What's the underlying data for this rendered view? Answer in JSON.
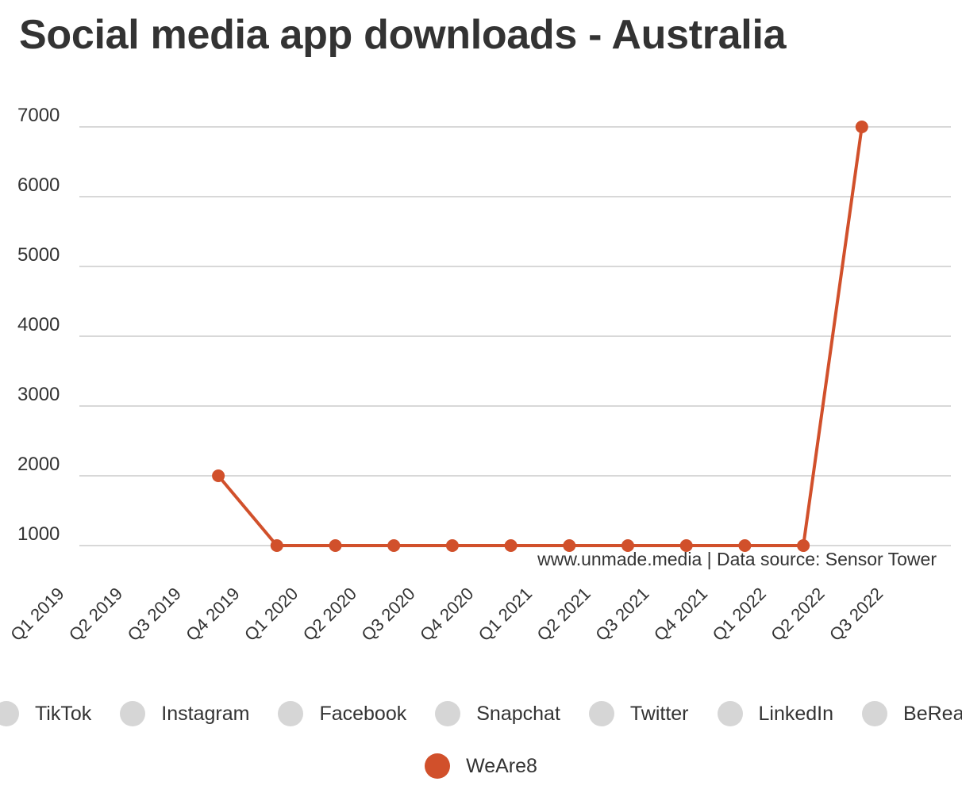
{
  "chart_data": {
    "type": "line",
    "title": "Social media app downloads - Australia",
    "source_note": "www.unmade.media | Data source: Sensor Tower",
    "categories": [
      "Q1 2019",
      "Q2 2019",
      "Q3 2019",
      "Q4 2019",
      "Q1 2020",
      "Q2 2020",
      "Q3 2020",
      "Q4 2020",
      "Q1 2021",
      "Q2 2021",
      "Q3 2021",
      "Q4 2021",
      "Q1 2022",
      "Q2 2022",
      "Q3 2022"
    ],
    "yticks": [
      "1000",
      "2000",
      "3000",
      "4000",
      "5000",
      "6000",
      "7000"
    ],
    "ylim": [
      800,
      7200
    ],
    "grid": true,
    "legend_position": "bottom",
    "legend": [
      {
        "name": "TikTok",
        "active": false
      },
      {
        "name": "Instagram",
        "active": false
      },
      {
        "name": "Facebook",
        "active": false
      },
      {
        "name": "Snapchat",
        "active": false
      },
      {
        "name": "Twitter",
        "active": false
      },
      {
        "name": "LinkedIn",
        "active": false
      },
      {
        "name": "BeReal",
        "active": false
      },
      {
        "name": "WeAre8",
        "active": true
      }
    ],
    "series": [
      {
        "name": "WeAre8",
        "color": "#d1502b",
        "values": [
          null,
          null,
          null,
          2000,
          1000,
          1000,
          1000,
          1000,
          1000,
          1000,
          1000,
          1000,
          1000,
          1000,
          7000
        ]
      }
    ],
    "colors": {
      "inactive_legend": "#d6d6d6",
      "grid": "#cccccc",
      "text": "#333333"
    }
  }
}
